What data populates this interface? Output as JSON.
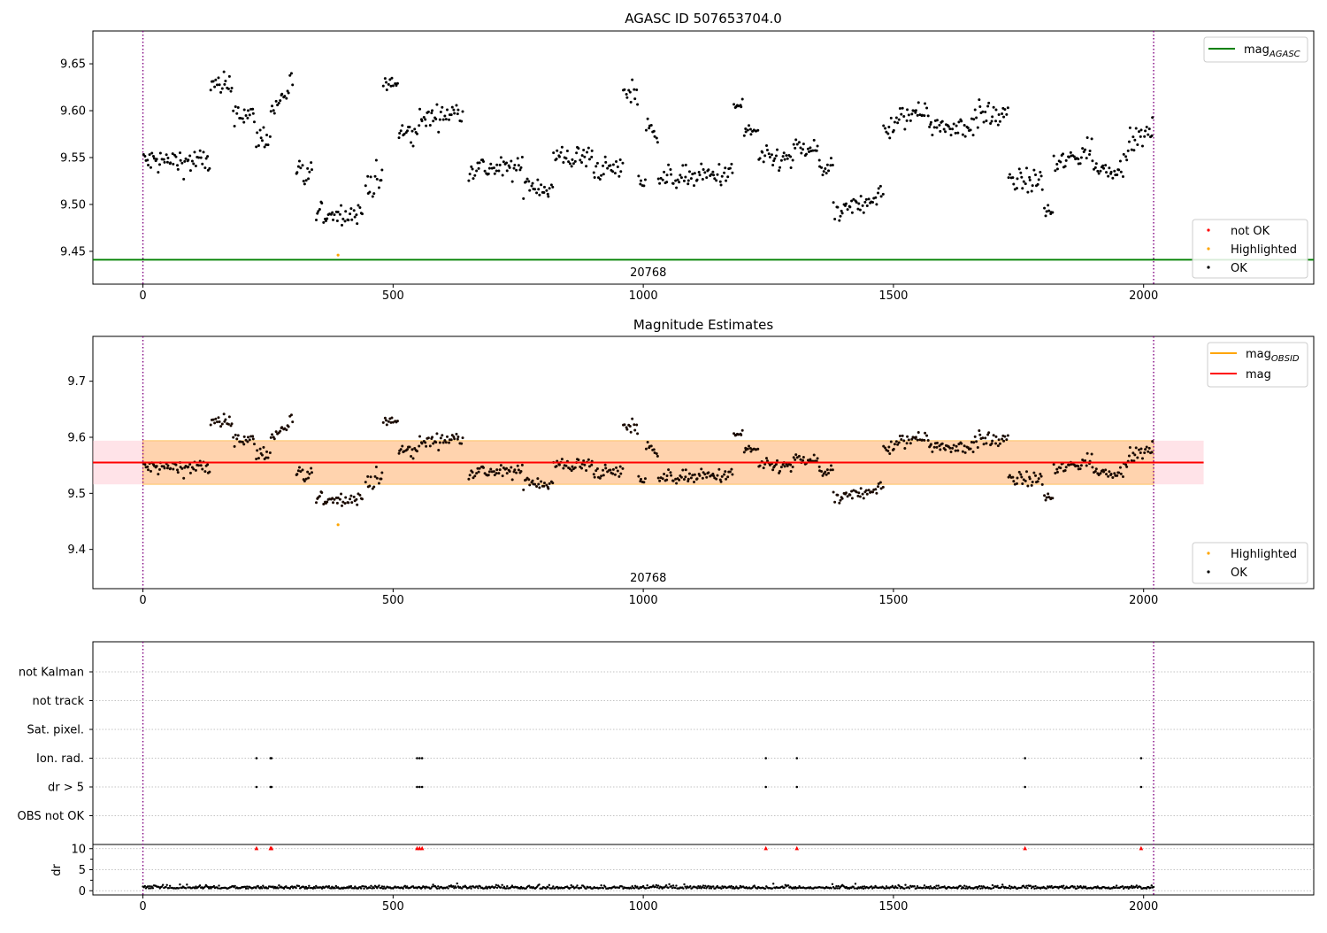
{
  "chart_data": [
    {
      "type": "scatter",
      "title": "AGASC ID 507653704.0",
      "xlabel": "",
      "ylabel": "",
      "xlim": [
        -100,
        2340
      ],
      "ylim": [
        9.415,
        9.685
      ],
      "x_ticks": [
        0,
        500,
        1000,
        1500,
        2000
      ],
      "x_tick_labels": [
        "0",
        "500",
        "1000",
        "1500",
        "2000"
      ],
      "y_ticks": [
        9.45,
        9.5,
        9.55,
        9.6,
        9.65
      ],
      "y_tick_labels": [
        "9.45",
        "9.50",
        "9.55",
        "9.60",
        "9.65"
      ],
      "grid": false,
      "vlines": [
        0,
        2020
      ],
      "obsid_label": {
        "text": "20768",
        "x": 1010
      },
      "hline": {
        "name": "mag_AGASC",
        "value": 9.441,
        "color": "#008000"
      },
      "legends": [
        {
          "placement": "top-right",
          "entries": [
            {
              "main": "mag",
              "sub": "AGASC",
              "kind": "line",
              "color": "#008000"
            }
          ]
        },
        {
          "placement": "bottom-right",
          "entries": [
            {
              "label": "not OK",
              "kind": "marker",
              "color": "#ff0000"
            },
            {
              "label": "Highlighted",
              "kind": "marker",
              "color": "#ffa500"
            },
            {
              "label": "OK",
              "kind": "marker",
              "color": "#000000"
            }
          ]
        }
      ],
      "highlighted_points": [
        {
          "x": 390,
          "y": 9.446
        }
      ],
      "ok_series_segments": [
        {
          "x_range": [
            0,
            135
          ],
          "level": 9.546,
          "amp": 0.012,
          "trend": 0
        },
        {
          "x_range": [
            135,
            180
          ],
          "level": 9.625,
          "amp": 0.012,
          "trend": 0
        },
        {
          "x_range": [
            180,
            225
          ],
          "level": 9.596,
          "amp": 0.012,
          "trend": -0.01
        },
        {
          "x_range": [
            225,
            255
          ],
          "level": 9.572,
          "amp": 0.012,
          "trend": 0
        },
        {
          "x_range": [
            255,
            300
          ],
          "level": 9.615,
          "amp": 0.012,
          "trend": 0.035
        },
        {
          "x_range": [
            305,
            340
          ],
          "level": 9.53,
          "amp": 0.015,
          "trend": 0
        },
        {
          "x_range": [
            345,
            440
          ],
          "level": 9.49,
          "amp": 0.009,
          "trend": 0
        },
        {
          "x_range": [
            445,
            480
          ],
          "level": 9.525,
          "amp": 0.015,
          "trend": 0
        },
        {
          "x_range": [
            480,
            510
          ],
          "level": 9.628,
          "amp": 0.01,
          "trend": 0
        },
        {
          "x_range": [
            510,
            550
          ],
          "level": 9.575,
          "amp": 0.012,
          "trend": 0
        },
        {
          "x_range": [
            550,
            640
          ],
          "level": 9.595,
          "amp": 0.01,
          "trend": 0.01
        },
        {
          "x_range": [
            650,
            680
          ],
          "level": 9.54,
          "amp": 0.012,
          "trend": 0
        },
        {
          "x_range": [
            680,
            760
          ],
          "level": 9.538,
          "amp": 0.01,
          "trend": 0
        },
        {
          "x_range": [
            760,
            820
          ],
          "level": 9.52,
          "amp": 0.012,
          "trend": -0.01
        },
        {
          "x_range": [
            820,
            900
          ],
          "level": 9.55,
          "amp": 0.011,
          "trend": 0
        },
        {
          "x_range": [
            900,
            960
          ],
          "level": 9.538,
          "amp": 0.01,
          "trend": 0
        },
        {
          "x_range": [
            960,
            990
          ],
          "level": 9.62,
          "amp": 0.012,
          "trend": 0
        },
        {
          "x_range": [
            990,
            1005
          ],
          "level": 9.525,
          "amp": 0.012,
          "trend": 0
        },
        {
          "x_range": [
            1005,
            1030
          ],
          "level": 9.58,
          "amp": 0.01,
          "trend": 0
        },
        {
          "x_range": [
            1030,
            1180
          ],
          "level": 9.53,
          "amp": 0.01,
          "trend": 0.005
        },
        {
          "x_range": [
            1180,
            1200
          ],
          "level": 9.605,
          "amp": 0.01,
          "trend": 0
        },
        {
          "x_range": [
            1200,
            1230
          ],
          "level": 9.578,
          "amp": 0.01,
          "trend": 0
        },
        {
          "x_range": [
            1230,
            1300
          ],
          "level": 9.548,
          "amp": 0.01,
          "trend": 0
        },
        {
          "x_range": [
            1300,
            1350
          ],
          "level": 9.558,
          "amp": 0.01,
          "trend": 0
        },
        {
          "x_range": [
            1350,
            1380
          ],
          "level": 9.54,
          "amp": 0.012,
          "trend": 0
        },
        {
          "x_range": [
            1380,
            1480
          ],
          "level": 9.5,
          "amp": 0.009,
          "trend": 0.025
        },
        {
          "x_range": [
            1480,
            1570
          ],
          "level": 9.593,
          "amp": 0.012,
          "trend": 0.03
        },
        {
          "x_range": [
            1570,
            1660
          ],
          "level": 9.583,
          "amp": 0.01,
          "trend": 0
        },
        {
          "x_range": [
            1660,
            1730
          ],
          "level": 9.595,
          "amp": 0.012,
          "trend": 0
        },
        {
          "x_range": [
            1730,
            1800
          ],
          "level": 9.525,
          "amp": 0.01,
          "trend": 0
        },
        {
          "x_range": [
            1800,
            1820
          ],
          "level": 9.493,
          "amp": 0.008,
          "trend": 0
        },
        {
          "x_range": [
            1820,
            1900
          ],
          "level": 9.55,
          "amp": 0.012,
          "trend": 0.02
        },
        {
          "x_range": [
            1900,
            1960
          ],
          "level": 9.538,
          "amp": 0.008,
          "trend": 0
        },
        {
          "x_range": [
            1960,
            2020
          ],
          "level": 9.57,
          "amp": 0.01,
          "trend": 0.02
        }
      ]
    },
    {
      "type": "scatter",
      "title": "Magnitude Estimates",
      "xlabel": "",
      "ylabel": "",
      "xlim": [
        -100,
        2340
      ],
      "ylim": [
        9.33,
        9.78
      ],
      "x_ticks": [
        0,
        500,
        1000,
        1500,
        2000
      ],
      "x_tick_labels": [
        "0",
        "500",
        "1000",
        "1500",
        "2000"
      ],
      "y_ticks": [
        9.4,
        9.5,
        9.6,
        9.7
      ],
      "y_tick_labels": [
        "9.4",
        "9.5",
        "9.6",
        "9.7"
      ],
      "grid": false,
      "vlines": [
        0,
        2020
      ],
      "obsid_label": {
        "text": "20768",
        "x": 1010
      },
      "mag_line": {
        "name": "mag",
        "value": 9.555,
        "x_range": [
          -100,
          2120
        ],
        "color": "#ff0000"
      },
      "mag_obsid_line": {
        "name": "mag_OBSID",
        "value": 9.555,
        "x_range": [
          0,
          2020
        ],
        "color": "#ffa500"
      },
      "bands": [
        {
          "x_range": [
            -100,
            2120
          ],
          "low": 9.516,
          "high": 9.594,
          "color": "#ffc0cb"
        },
        {
          "x_range": [
            0,
            2020
          ],
          "low": 9.516,
          "high": 9.594,
          "color": "#ffa500"
        }
      ],
      "legends": [
        {
          "placement": "top-right",
          "entries": [
            {
              "main": "mag",
              "sub": "OBSID",
              "kind": "line",
              "color": "#ffa500"
            },
            {
              "main": "mag",
              "sub": "",
              "kind": "line",
              "color": "#ff0000"
            }
          ]
        },
        {
          "placement": "bottom-right",
          "entries": [
            {
              "label": "Highlighted",
              "kind": "marker",
              "color": "#ffa500"
            },
            {
              "label": "OK",
              "kind": "marker",
              "color": "#000000"
            }
          ]
        }
      ],
      "highlighted_points": [
        {
          "x": 390,
          "y": 9.444
        }
      ]
    },
    {
      "type": "scatter",
      "title": "",
      "xlabel": "",
      "ylabel": "",
      "xlim": [
        -100,
        2340
      ],
      "x_ticks": [
        0,
        500,
        1000,
        1500,
        2000
      ],
      "x_tick_labels": [
        "0",
        "500",
        "1000",
        "1500",
        "2000"
      ],
      "vlines": [
        0,
        2020
      ],
      "flag_rows": [
        "not Kalman",
        "not track",
        "Sat. pixel.",
        "Ion. rad.",
        "dr > 5",
        "OBS not OK"
      ],
      "flags": {
        "Ion. rad.": [
          227,
          255,
          257,
          548,
          553,
          558,
          1245,
          1307,
          1763,
          1995
        ],
        "dr > 5": [
          227,
          255,
          257,
          548,
          553,
          558,
          1245,
          1307,
          1763,
          1995
        ]
      },
      "grid": true
    },
    {
      "type": "scatter",
      "title": "",
      "xlabel": "",
      "ylabel": "dr",
      "xlim": [
        -100,
        2340
      ],
      "ylim": [
        -1,
        11
      ],
      "y_ticks": [
        0,
        5,
        10
      ],
      "y_tick_labels": [
        "0",
        "5",
        "10"
      ],
      "hlines": [
        0,
        5,
        10
      ],
      "vlines": [
        0,
        2020
      ],
      "high_dr_markers": {
        "value": 10,
        "x": [
          227,
          255,
          257,
          548,
          553,
          558,
          1245,
          1307,
          1763,
          1995
        ],
        "color": "#ff0000"
      },
      "dr_level": 0.5
    }
  ],
  "colors": {
    "ok": "#000000",
    "not_ok": "#ff0000",
    "highlighted": "#ffa500",
    "vline": "#800080"
  }
}
